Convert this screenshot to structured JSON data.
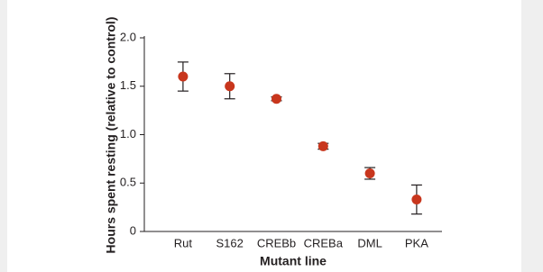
{
  "chart_data": {
    "type": "errorbar",
    "x_label": "Mutant line",
    "y_label": "Hours spent resting (relative to control)",
    "categories": [
      "Rut",
      "S162",
      "CREBb",
      "CREBa",
      "DML",
      "PKA"
    ],
    "values": [
      1.6,
      1.5,
      1.37,
      0.88,
      0.6,
      0.33
    ],
    "errors": [
      0.15,
      0.13,
      0.02,
      0.03,
      0.06,
      0.15
    ],
    "color": "#c8361d",
    "ylim": [
      0,
      2
    ],
    "yticks": [
      0,
      0.5,
      {
        "value": 1,
        "label": "1.0"
      },
      1.5,
      {
        "value": 2,
        "label": "2.0"
      }
    ]
  }
}
